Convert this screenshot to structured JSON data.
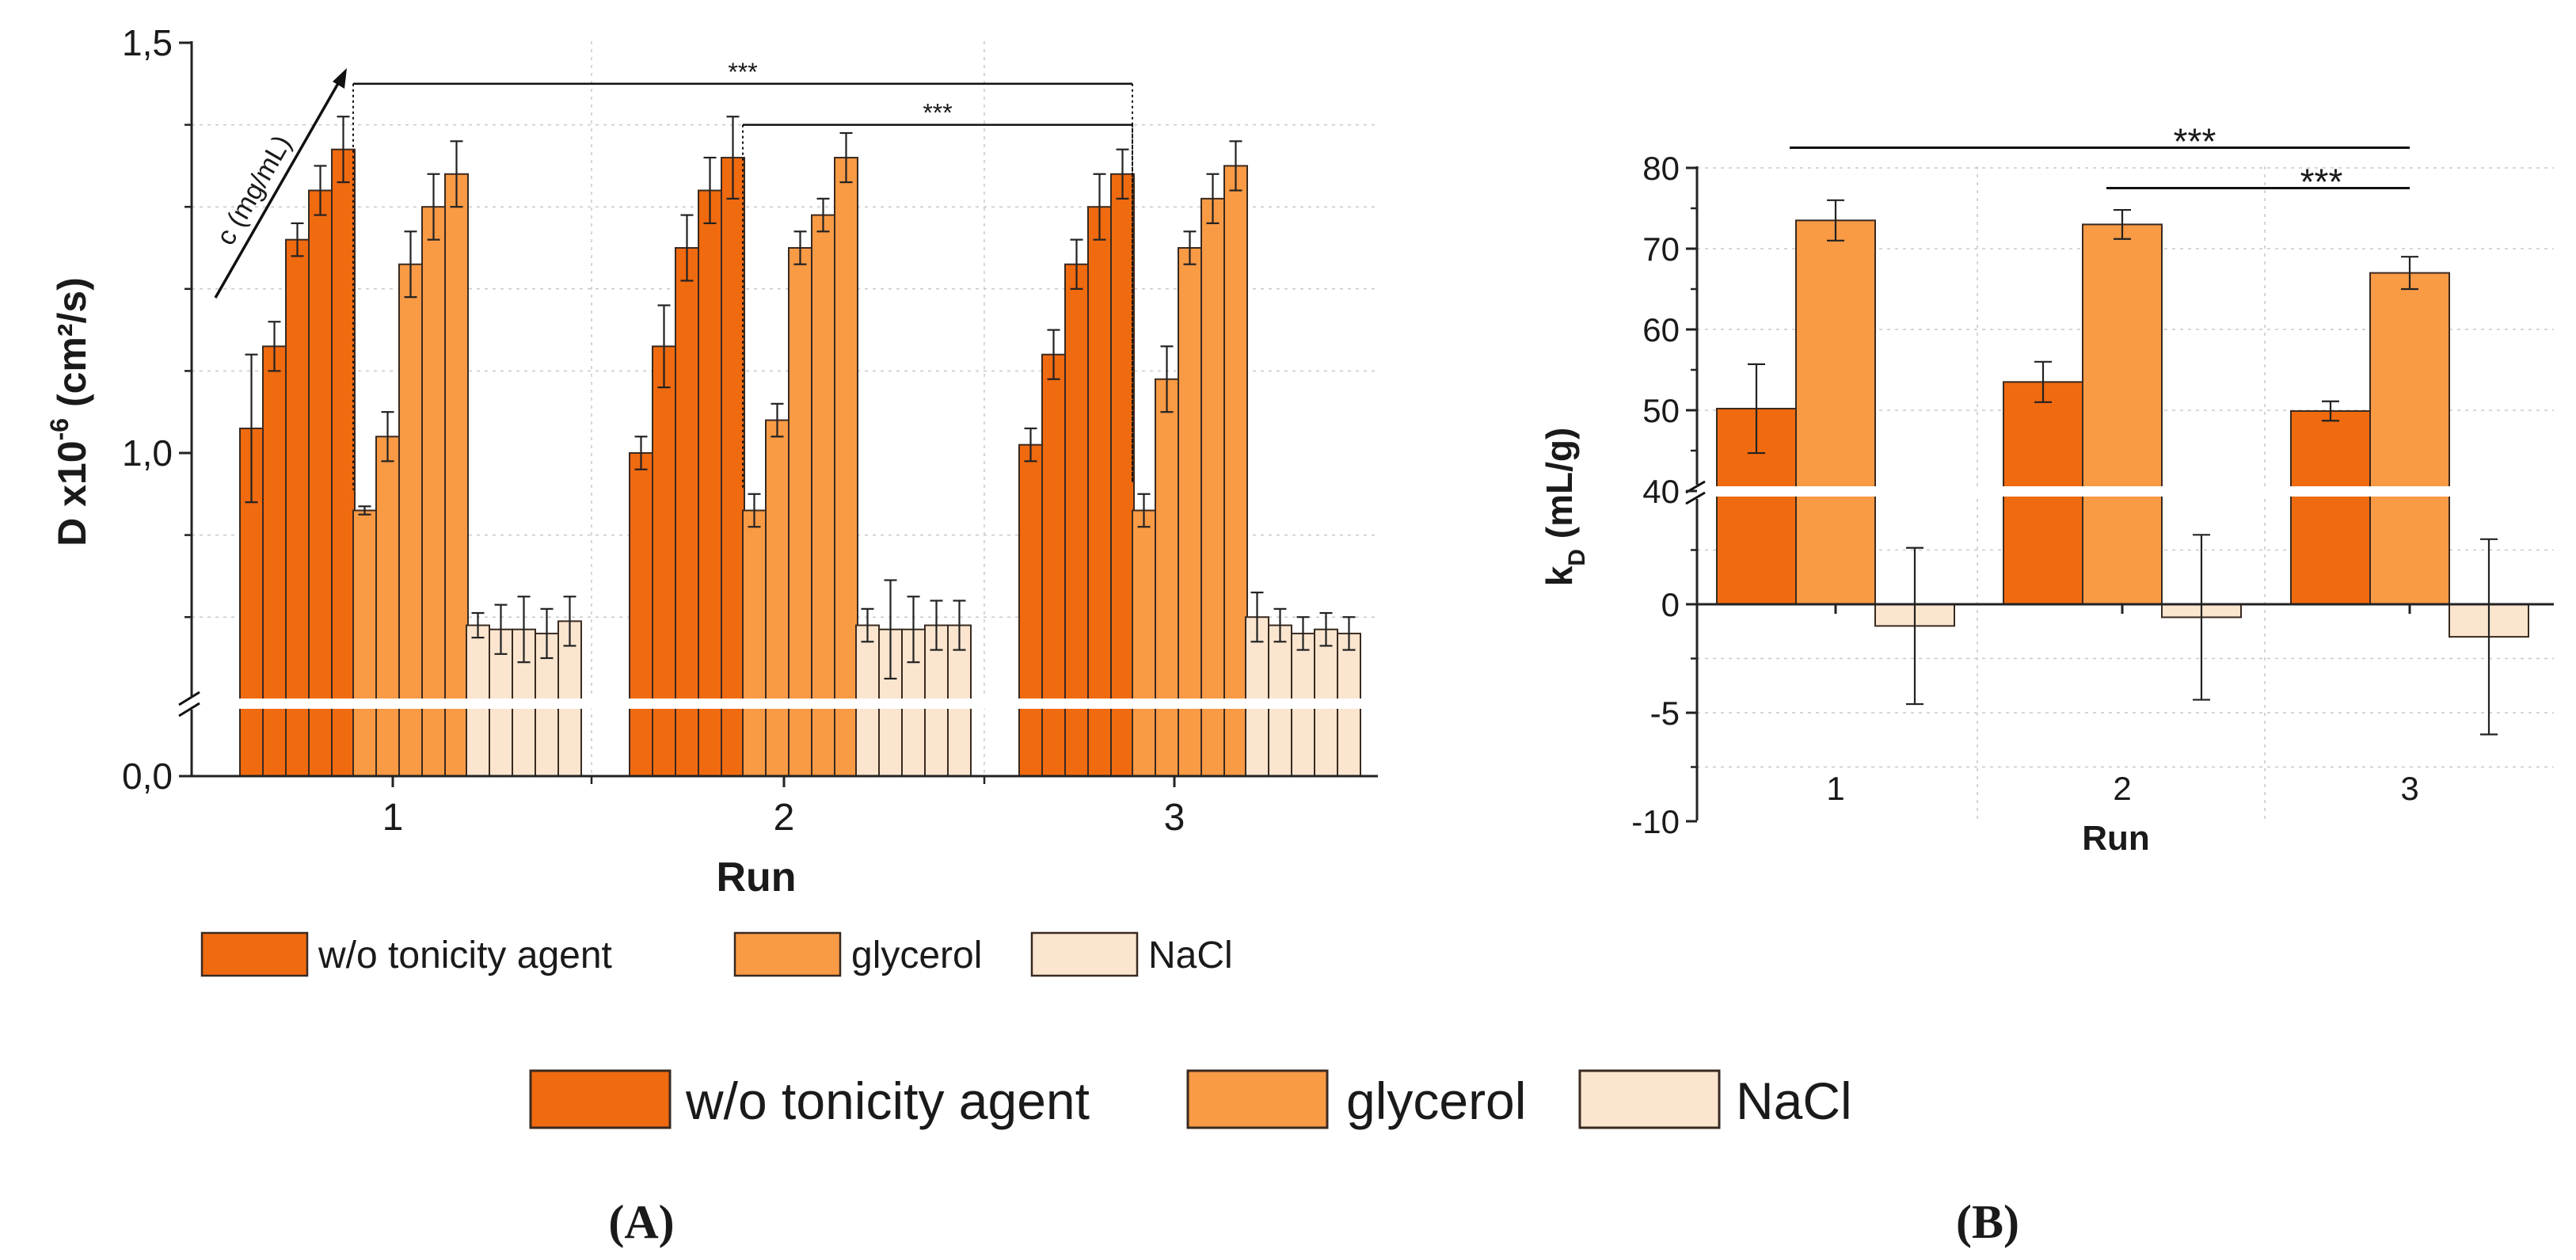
{
  "colors": {
    "wo": "#f06a10",
    "glycerol": "#f99a45",
    "nacl": "#fbe5cf",
    "stroke": "#3a2a20",
    "axis": "#222222",
    "grid": "#c8c8c8"
  },
  "legend": {
    "wo": "w/o tonicity agent",
    "glycerol": "glycerol",
    "nacl": "NaCl"
  },
  "panel_labels": {
    "a": "(A)",
    "b": "(B)"
  },
  "chart_data": [
    {
      "type": "bar",
      "panel": "A",
      "xlabel": "Run",
      "ylabel_main": "D x10",
      "ylabel_sup": "-6",
      "ylabel_tail": " (cm²/s)",
      "yticks": [
        "0,0",
        "1,0",
        "1,5"
      ],
      "axis_break": true,
      "ylim_upper": [
        0.7,
        1.5
      ],
      "concentration_label": "c (mg/mL)",
      "categories": [
        "1",
        "2",
        "3"
      ],
      "series": [
        {
          "name": "w/o tonicity agent",
          "color_key": "wo",
          "values": [
            [
              1.03,
              1.13,
              1.26,
              1.32,
              1.37
            ],
            [
              1.0,
              1.13,
              1.25,
              1.32,
              1.36
            ],
            [
              1.01,
              1.12,
              1.23,
              1.3,
              1.34
            ]
          ],
          "errors": [
            [
              0.09,
              0.03,
              0.02,
              0.03,
              0.04
            ],
            [
              0.02,
              0.05,
              0.04,
              0.04,
              0.05
            ],
            [
              0.02,
              0.03,
              0.03,
              0.04,
              0.03
            ]
          ]
        },
        {
          "name": "glycerol",
          "color_key": "glycerol",
          "values": [
            [
              0.93,
              1.02,
              1.23,
              1.3,
              1.34
            ],
            [
              0.93,
              1.04,
              1.25,
              1.29,
              1.36
            ],
            [
              0.93,
              1.09,
              1.25,
              1.31,
              1.35
            ]
          ],
          "errors": [
            [
              0.005,
              0.03,
              0.04,
              0.04,
              0.04
            ],
            [
              0.02,
              0.02,
              0.02,
              0.02,
              0.03
            ],
            [
              0.02,
              0.04,
              0.02,
              0.03,
              0.03
            ]
          ]
        },
        {
          "name": "NaCl",
          "color_key": "nacl",
          "values": [
            [
              0.79,
              0.785,
              0.785,
              0.78,
              0.795
            ],
            [
              0.79,
              0.785,
              0.785,
              0.79,
              0.79
            ],
            [
              0.8,
              0.79,
              0.78,
              0.785,
              0.78
            ]
          ],
          "errors": [
            [
              0.015,
              0.03,
              0.04,
              0.03,
              0.03
            ],
            [
              0.02,
              0.06,
              0.04,
              0.03,
              0.03
            ],
            [
              0.03,
              0.02,
              0.02,
              0.02,
              0.02
            ]
          ]
        }
      ],
      "significance": [
        {
          "label": "***",
          "from_run": "1",
          "to_run": "3",
          "level": 1.45
        },
        {
          "label": "***",
          "from_run": "2",
          "to_run": "3",
          "level": 1.4
        }
      ]
    },
    {
      "type": "bar",
      "panel": "B",
      "xlabel": "Run",
      "ylabel_main": "k",
      "ylabel_sub": "D",
      "ylabel_tail": " (mL/g)",
      "axis_break": true,
      "ylim_upper": [
        40,
        80
      ],
      "ylim_lower": [
        -10,
        5
      ],
      "yticks_upper": [
        "40",
        "50",
        "60",
        "70",
        "80"
      ],
      "yticks_lower": [
        "-10",
        "-5",
        "0"
      ],
      "categories": [
        "1",
        "2",
        "3"
      ],
      "series": [
        {
          "name": "w/o tonicity agent",
          "color_key": "wo",
          "values": [
            50.2,
            53.5,
            49.9
          ],
          "errors": [
            5.5,
            2.5,
            1.2
          ]
        },
        {
          "name": "glycerol",
          "color_key": "glycerol",
          "values": [
            73.5,
            73.0,
            67.0
          ],
          "errors": [
            2.5,
            1.8,
            2.0
          ]
        },
        {
          "name": "NaCl",
          "color_key": "nacl",
          "values": [
            -1.0,
            -0.6,
            -1.5
          ],
          "errors": [
            3.6,
            3.8,
            4.5
          ]
        }
      ],
      "significance": [
        {
          "label": "***",
          "from_run": "1",
          "to_run": "3",
          "level": 82.5
        },
        {
          "label": "***",
          "from_run": "2",
          "to_run": "3",
          "level": 77.5
        }
      ]
    }
  ]
}
